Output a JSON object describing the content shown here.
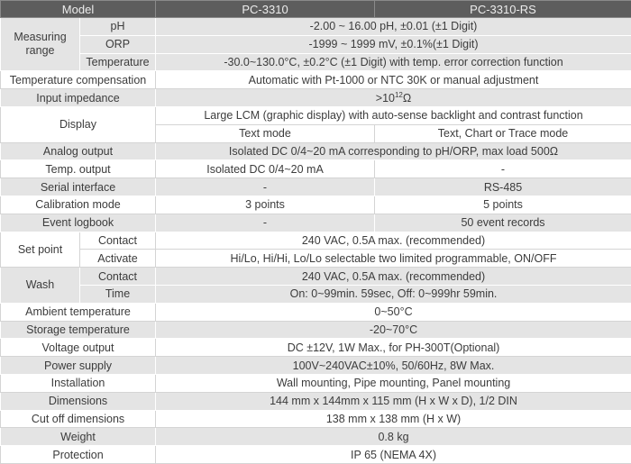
{
  "header": {
    "model": "Model",
    "col_a": "PC-3310",
    "col_b": "PC-3310-RS"
  },
  "measuring": {
    "label": "Measuring range",
    "ph": "pH",
    "ph_val": "-2.00 ~ 16.00 pH, ±0.01 (±1 Digit)",
    "orp": "ORP",
    "orp_val": "-1999 ~ 1999 mV, ±0.1%(±1 Digit)",
    "temp": "Temperature",
    "temp_val": "-30.0~130.0°C, ±0.2°C (±1 Digit) with temp. error correction function"
  },
  "temp_comp": {
    "label": "Temperature compensation",
    "value": "Automatic with Pt-1000 or NTC 30K or manual adjustment"
  },
  "input_imp": {
    "label": "Input impedance",
    "value_prefix": ">10",
    "value_exp": "12",
    "value_unit": "Ω"
  },
  "display": {
    "label": "Display",
    "value": "Large LCM (graphic display) with auto-sense backlight and contrast function",
    "a": "Text mode",
    "b": "Text, Chart or Trace mode"
  },
  "analog": {
    "label": "Analog output",
    "value": "Isolated DC 0/4~20 mA corresponding to pH/ORP, max load 500Ω"
  },
  "temp_out": {
    "label": "Temp. output",
    "a": "Isolated DC 0/4~20 mA",
    "b": "-"
  },
  "serial": {
    "label": "Serial interface",
    "a": "-",
    "b": "RS-485"
  },
  "calib": {
    "label": "Calibration mode",
    "a": "3 points",
    "b": "5 points"
  },
  "event": {
    "label": "Event logbook",
    "a": "-",
    "b": "50 event records"
  },
  "setpoint": {
    "label": "Set point",
    "contact": "Contact",
    "contact_val": "240 VAC, 0.5A max. (recommended)",
    "activate": "Activate",
    "activate_val": "Hi/Lo, Hi/Hi, Lo/Lo selectable two limited programmable, ON/OFF"
  },
  "wash": {
    "label": "Wash",
    "contact": "Contact",
    "contact_val": "240 VAC, 0.5A max. (recommended)",
    "time": "Time",
    "time_val": "On: 0~99min. 59sec, Off: 0~999hr 59min."
  },
  "rows": [
    {
      "label": "Ambient temperature",
      "value": "0~50°C"
    },
    {
      "label": "Storage temperature",
      "value": "-20~70°C"
    },
    {
      "label": "Voltage output",
      "value": "DC ±12V, 1W Max., for PH-300T(Optional)"
    },
    {
      "label": "Power supply",
      "value": "100V~240VAC±10%, 50/60Hz, 8W Max."
    },
    {
      "label": "Installation",
      "value": "Wall mounting, Pipe mounting, Panel mounting"
    },
    {
      "label": "Dimensions",
      "value": "144 mm x 144mm x 115 mm (H x W x D), 1/2 DIN"
    },
    {
      "label": "Cut off dimensions",
      "value": "138 mm x 138 mm (H x W)"
    },
    {
      "label": "Weight",
      "value": "0.8 kg"
    },
    {
      "label": "Protection",
      "value": "IP 65 (NEMA 4X)"
    }
  ]
}
